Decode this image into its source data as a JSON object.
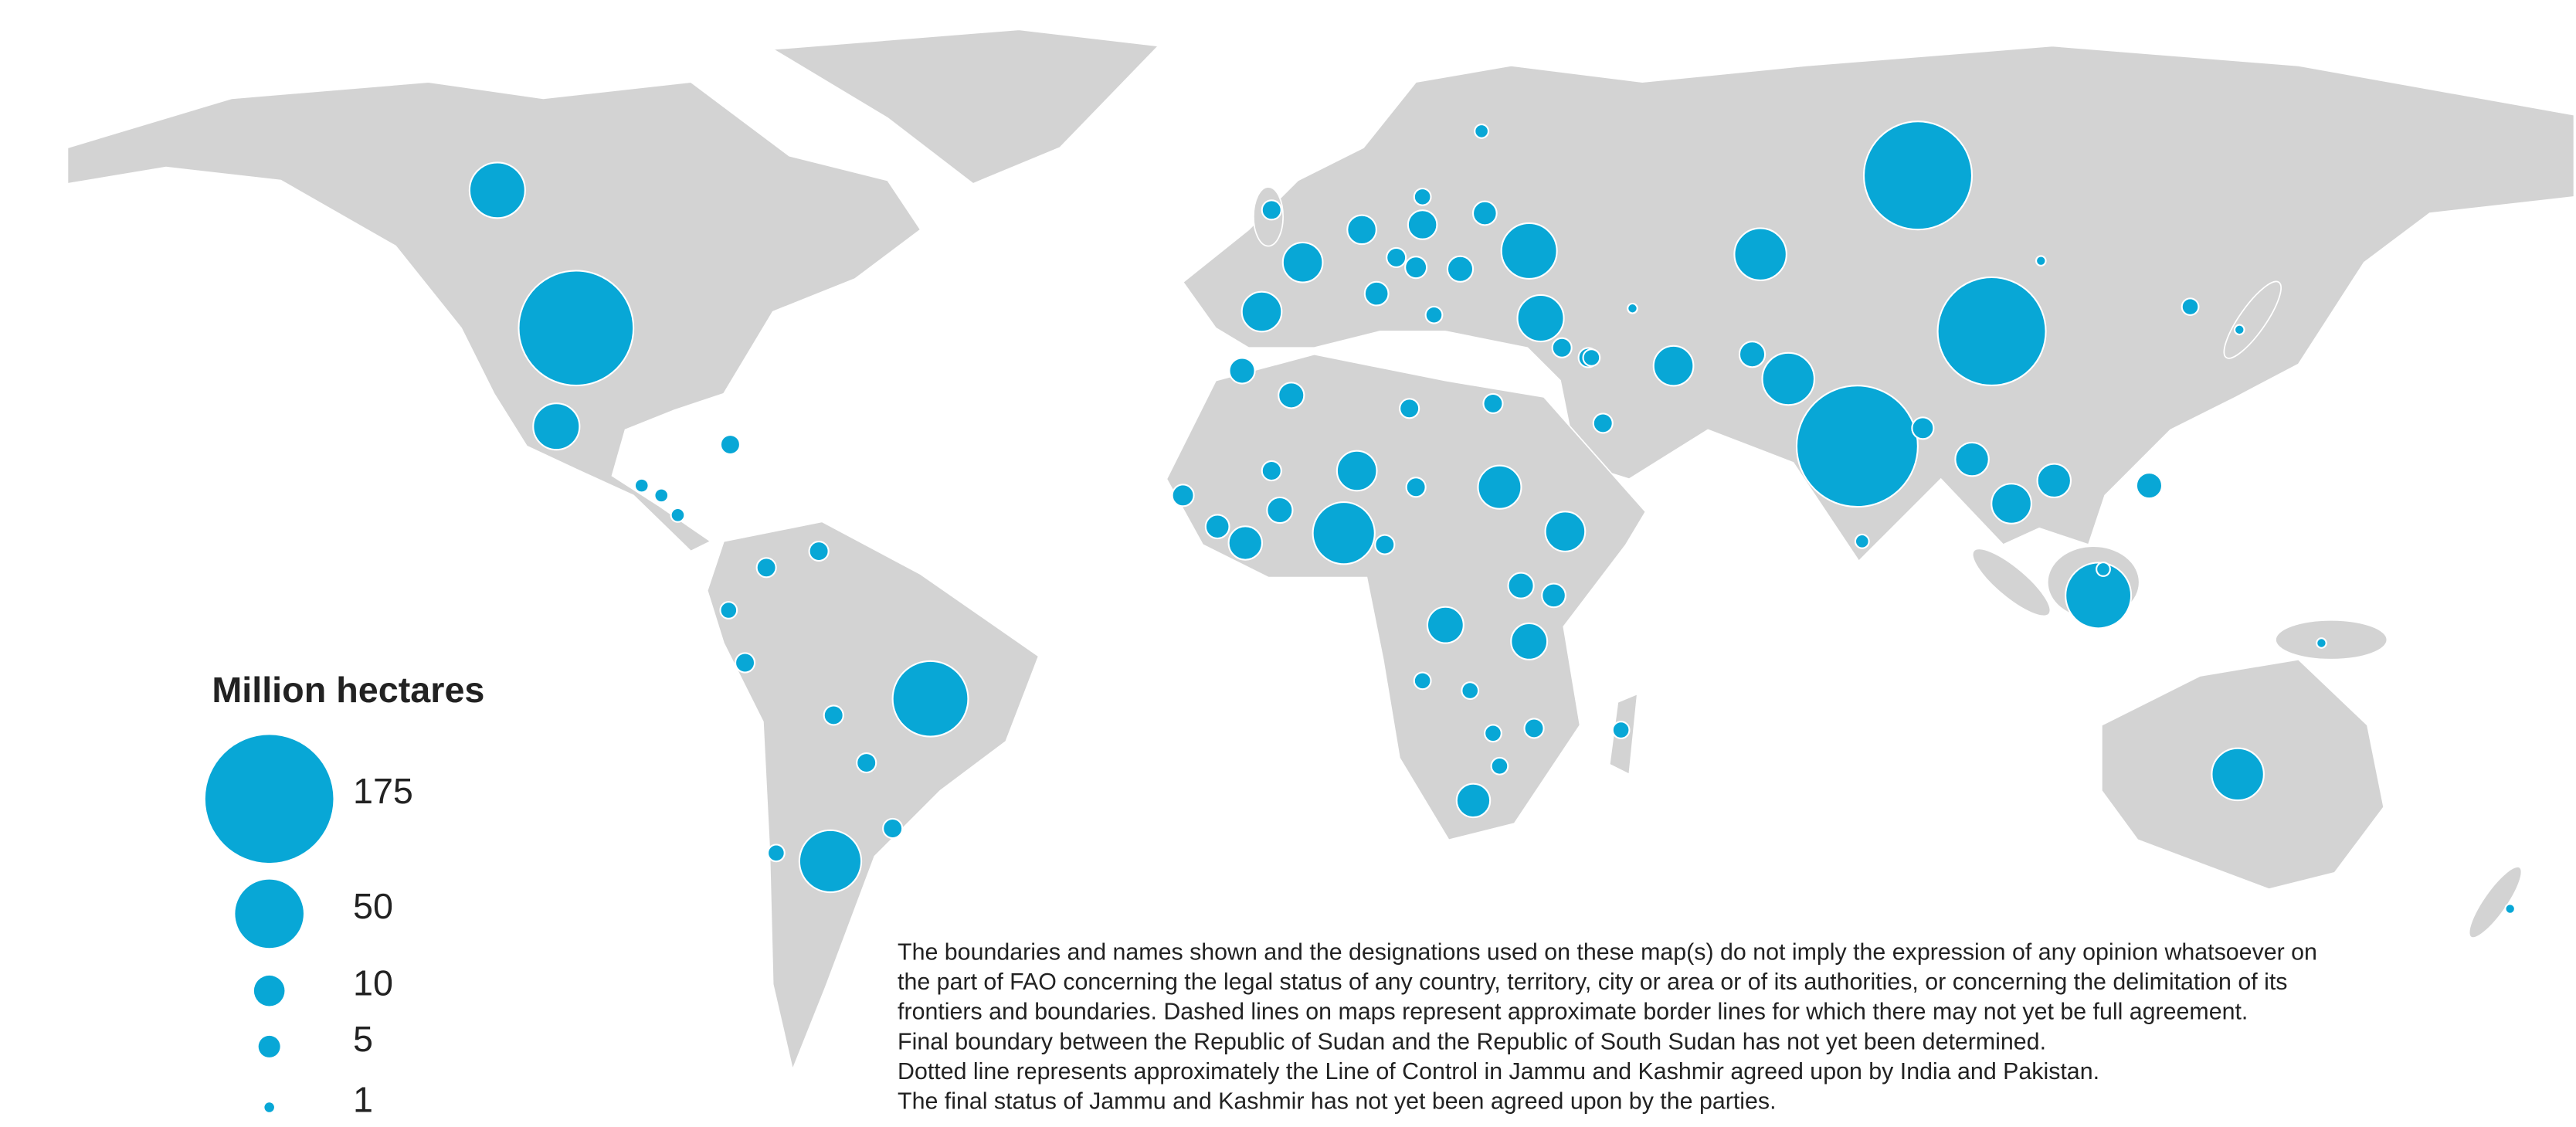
{
  "map": {
    "color": "#08a7d6",
    "legend": {
      "title": "Million hectares",
      "values": [
        175,
        50,
        10,
        5,
        1
      ]
    },
    "bubbles": [
      33,
      141,
      23,
      61,
      41,
      125,
      125,
      157,
      29,
      29,
      46,
      41,
      33,
      23,
      17,
      17,
      17,
      29,
      17,
      12,
      12,
      7,
      20,
      17,
      17,
      14,
      14,
      12,
      7,
      7,
      9,
      9,
      7,
      6,
      4,
      4,
      12,
      6,
      7,
      4,
      4,
      6,
      7,
      4,
      3,
      3,
      3,
      3,
      3,
      4,
      4,
      4,
      7,
      5,
      4,
      4,
      4,
      4,
      4,
      4,
      3,
      4,
      3,
      2,
      2,
      2,
      1,
      3,
      2,
      2,
      1,
      1,
      6,
      3,
      5,
      3,
      4,
      3,
      4,
      5,
      4,
      2,
      1,
      1
    ]
  },
  "disclaimer": [
    "The boundaries and names shown and the designations used on these map(s) do not imply the expression of any opinion whatsoever on",
    "the part of FAO concerning the legal status of any country, territory, city or area or of its authorities, or concerning the delimitation of its",
    "frontiers and boundaries. Dashed lines on maps represent approximate border lines for which there may not yet be full agreement.",
    "Final boundary between the Republic of Sudan and the Republic of South Sudan has not yet been determined.",
    "Dotted line represents approximately the Line of Control in Jammu and Kashmir agreed upon by India and Pakistan.",
    "The final status of Jammu and Kashmir has not yet been agreed upon by the parties."
  ]
}
